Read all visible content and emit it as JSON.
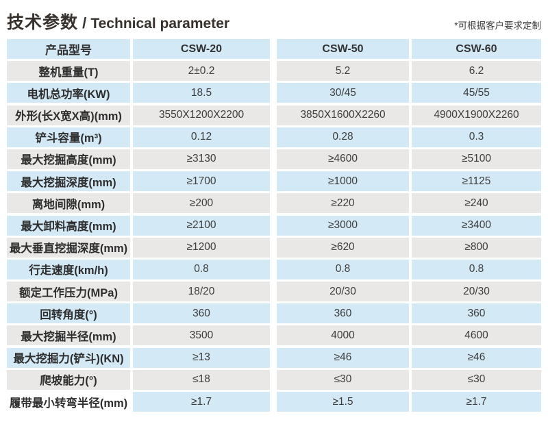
{
  "header": {
    "title_cn": "技术参数",
    "title_separator": " / ",
    "title_en": "Technical parameter",
    "note": "*可根据客户要求定制"
  },
  "colors": {
    "row_blue": "#d4e9f6",
    "row_gray": "#e9e8e6",
    "background": "#ffffff",
    "text": "#3c3c3c"
  },
  "table": {
    "columns": [
      "产品型号",
      "CSW-20",
      "CSW-50",
      "CSW-60"
    ],
    "rows": [
      {
        "label": "产品型号",
        "values": [
          "CSW-20",
          "CSW-50",
          "CSW-60"
        ]
      },
      {
        "label": "整机重量(T)",
        "values": [
          "2±0.2",
          "5.2",
          "6.2"
        ]
      },
      {
        "label": "电机总功率(KW)",
        "values": [
          "18.5",
          "30/45",
          "45/55"
        ]
      },
      {
        "label": "外形(长X宽X高)(mm)",
        "values": [
          "3550X1200X2200",
          "3850X1600X2260",
          "4900X1900X2260"
        ]
      },
      {
        "label": "铲斗容量(m³)",
        "values": [
          "0.12",
          "0.28",
          "0.3"
        ]
      },
      {
        "label": "最大挖掘高度(mm)",
        "values": [
          "≥3130",
          "≥4600",
          "≥5100"
        ]
      },
      {
        "label": "最大挖掘深度(mm)",
        "values": [
          "≥1700",
          "≥1000",
          "≥1125"
        ]
      },
      {
        "label": "离地间隙(mm)",
        "values": [
          "≥200",
          "≥220",
          "≥240"
        ]
      },
      {
        "label": "最大卸料高度(mm)",
        "values": [
          "≥2100",
          "≥3000",
          "≥3400"
        ]
      },
      {
        "label": "最大垂直挖掘深度(mm)",
        "values": [
          "≥1200",
          "≥620",
          "≥800"
        ]
      },
      {
        "label": "行走速度(km/h)",
        "values": [
          "0.8",
          "0.8",
          "0.8"
        ]
      },
      {
        "label": "额定工作压力(MPa)",
        "values": [
          "18/20",
          "20/30",
          "20/30"
        ]
      },
      {
        "label": "回转角度(°)",
        "values": [
          "360",
          "360",
          "360"
        ]
      },
      {
        "label": "最大挖掘半径(mm)",
        "values": [
          "3500",
          "4000",
          "4600"
        ]
      },
      {
        "label": "最大挖掘力(铲斗)(KN)",
        "values": [
          "≥13",
          "≥46",
          "≥46"
        ]
      },
      {
        "label": "爬坡能力(°)",
        "values": [
          "≤18",
          "≤30",
          "≤30"
        ]
      },
      {
        "label": "履带最小转弯半径(mm)",
        "values": [
          "≥1.7",
          "≥1.5",
          "≥1.7"
        ]
      }
    ]
  }
}
